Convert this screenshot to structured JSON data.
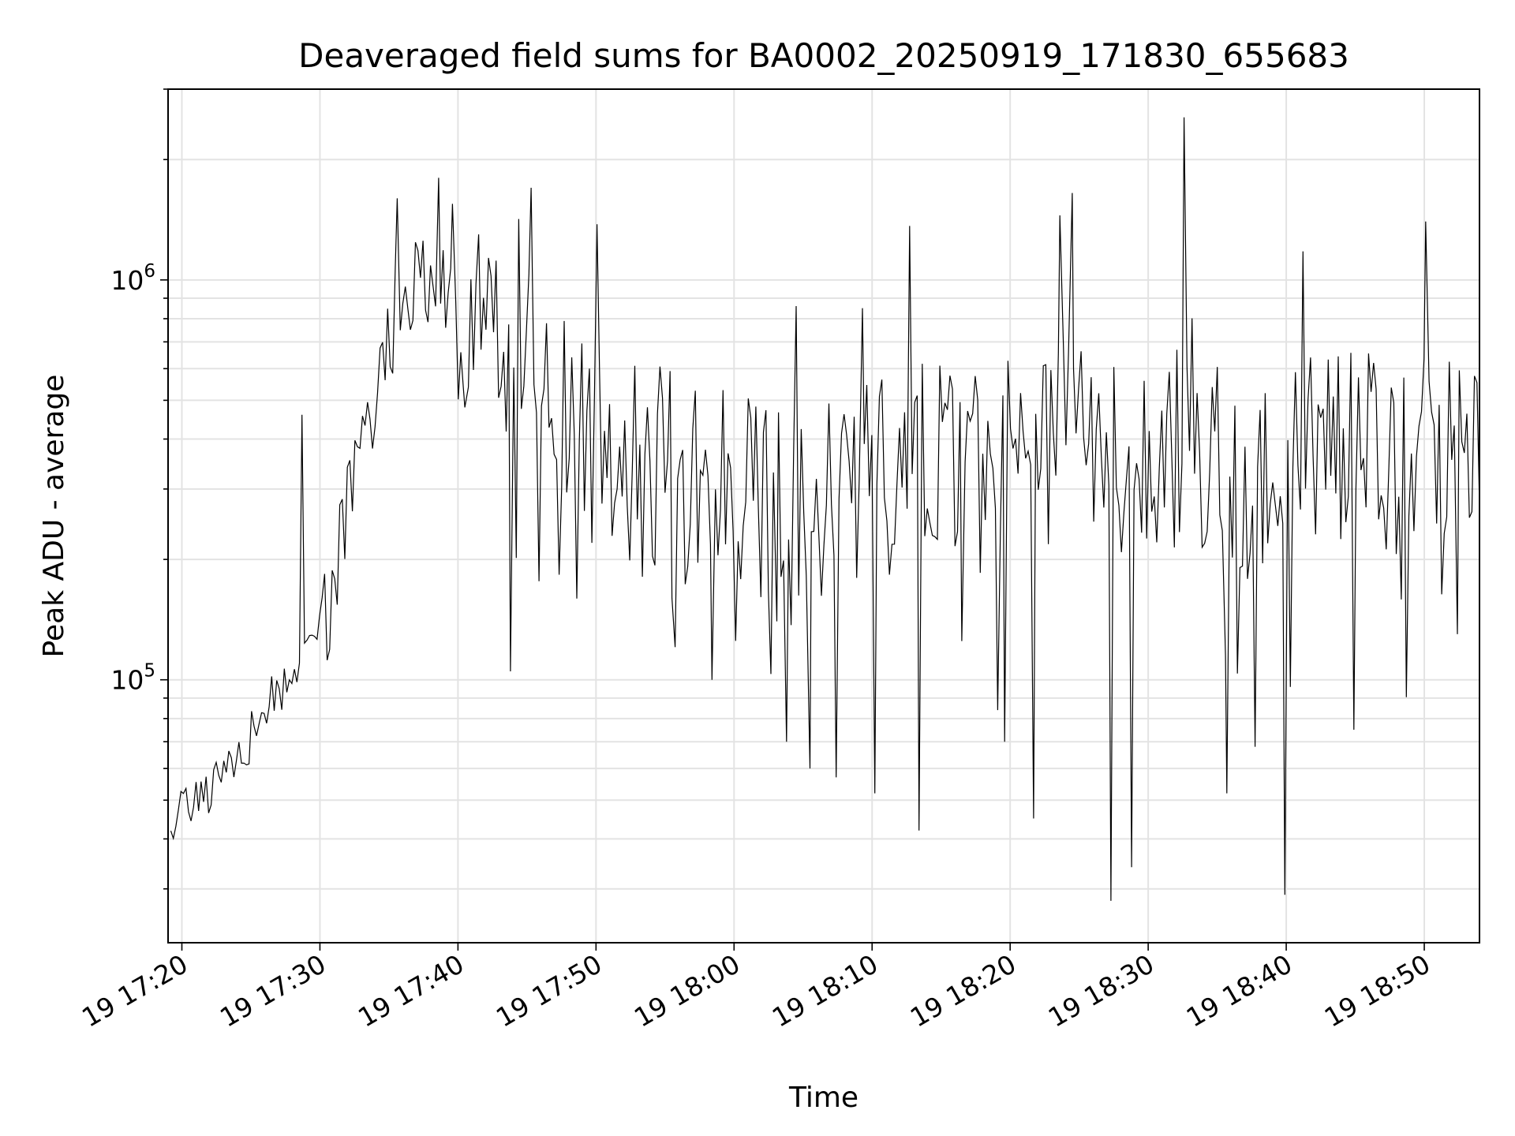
{
  "chart_data": {
    "type": "line",
    "title": "Deaveraged field sums for BA0002_20250919_171830_655683",
    "xlabel": "Time",
    "ylabel": "Peak ADU - average",
    "yscale": "log",
    "ylim": [
      22000,
      3000000
    ],
    "xlim_minutes": [
      -1.0,
      94.0
    ],
    "x_tick_labels": [
      "19 17:20",
      "19 17:30",
      "19 17:40",
      "19 17:50",
      "19 18:00",
      "19 18:10",
      "19 18:20",
      "19 18:30",
      "19 18:40",
      "19 18:50"
    ],
    "x_tick_minutes": [
      0,
      10,
      20,
      30,
      40,
      50,
      60,
      70,
      80,
      90
    ],
    "y_tick_values": [
      100000,
      1000000
    ],
    "y_tick_base": "10",
    "y_tick_exponents": [
      "5",
      "6"
    ],
    "grid": true,
    "line_color": "#000000",
    "series": [
      {
        "name": "Peak ADU - average",
        "anchors_x_minutes": [
          -0.8,
          0.6,
          1.8,
          3.2,
          4.6,
          5.8,
          7.0,
          8.2,
          8.7,
          9.2,
          9.7,
          10.6,
          11.8,
          13.0,
          14.2,
          15.4,
          16.6,
          17.8,
          18.8,
          19.6,
          20.6,
          21.8,
          23.2,
          24.5,
          25.8,
          27.0,
          28.2,
          29.6,
          31.0,
          32.5,
          34.0,
          35.5,
          37.0,
          38.5,
          40.0,
          41.5,
          43.0,
          44.5,
          46.0,
          47.5,
          49.0,
          50.5,
          52.0,
          53.5,
          55.0,
          56.5,
          58.0,
          59.5,
          61.0,
          62.5,
          64.0,
          65.5,
          67.0,
          68.5,
          70.0,
          71.5,
          73.0,
          74.5,
          76.0,
          77.5,
          79.0,
          80.5,
          82.0,
          83.5,
          85.0,
          86.5,
          88.0,
          89.5,
          91.0,
          92.5,
          94.0
        ],
        "anchors_values": [
          44000,
          46000,
          50000,
          57000,
          68000,
          80000,
          95000,
          105000,
          112000,
          120000,
          118000,
          150000,
          240000,
          380000,
          560000,
          800000,
          930000,
          960000,
          970000,
          940000,
          860000,
          900000,
          720000,
          850000,
          560000,
          480000,
          460000,
          420000,
          390000,
          340000,
          360000,
          330000,
          320000,
          300000,
          310000,
          280000,
          270000,
          270000,
          280000,
          290000,
          320000,
          330000,
          340000,
          350000,
          360000,
          380000,
          370000,
          360000,
          350000,
          360000,
          380000,
          390000,
          360000,
          330000,
          370000,
          400000,
          360000,
          330000,
          320000,
          340000,
          380000,
          400000,
          420000,
          410000,
          390000,
          380000,
          370000,
          380000,
          390000,
          380000,
          370000
        ],
        "n_points": 520,
        "seed": 655683,
        "spikes": [
          {
            "x_minutes": 8.7,
            "value": 460000
          },
          {
            "x_minutes": 15.6,
            "value": 1600000
          },
          {
            "x_minutes": 18.6,
            "value": 1800000
          },
          {
            "x_minutes": 19.6,
            "value": 1550000
          },
          {
            "x_minutes": 20.5,
            "value": 480000
          },
          {
            "x_minutes": 21.5,
            "value": 1300000
          },
          {
            "x_minutes": 23.8,
            "value": 105000
          },
          {
            "x_minutes": 24.4,
            "value": 1420000
          },
          {
            "x_minutes": 25.3,
            "value": 1700000
          },
          {
            "x_minutes": 29.7,
            "value": 220000
          },
          {
            "x_minutes": 35.5,
            "value": 160000
          },
          {
            "x_minutes": 38.4,
            "value": 100000
          },
          {
            "x_minutes": 43.1,
            "value": 140000
          },
          {
            "x_minutes": 43.8,
            "value": 70000
          },
          {
            "x_minutes": 44.5,
            "value": 860000
          },
          {
            "x_minutes": 45.5,
            "value": 60000
          },
          {
            "x_minutes": 47.4,
            "value": 57000
          },
          {
            "x_minutes": 49.3,
            "value": 850000
          },
          {
            "x_minutes": 50.2,
            "value": 52000
          },
          {
            "x_minutes": 53.4,
            "value": 42000
          },
          {
            "x_minutes": 56.5,
            "value": 125000
          },
          {
            "x_minutes": 59.1,
            "value": 84000
          },
          {
            "x_minutes": 59.6,
            "value": 70000
          },
          {
            "x_minutes": 61.7,
            "value": 45000
          },
          {
            "x_minutes": 63.6,
            "value": 1450000
          },
          {
            "x_minutes": 64.5,
            "value": 1650000
          },
          {
            "x_minutes": 67.3,
            "value": 28000
          },
          {
            "x_minutes": 68.8,
            "value": 34000
          },
          {
            "x_minutes": 72.6,
            "value": 2550000
          },
          {
            "x_minutes": 75.6,
            "value": 115000
          },
          {
            "x_minutes": 75.7,
            "value": 52000
          },
          {
            "x_minutes": 79.9,
            "value": 29000
          },
          {
            "x_minutes": 80.3,
            "value": 96000
          },
          {
            "x_minutes": 84.9,
            "value": 75000
          },
          {
            "x_minutes": 90.1,
            "value": 1400000
          },
          {
            "x_minutes": 92.4,
            "value": 130000
          }
        ]
      }
    ]
  }
}
